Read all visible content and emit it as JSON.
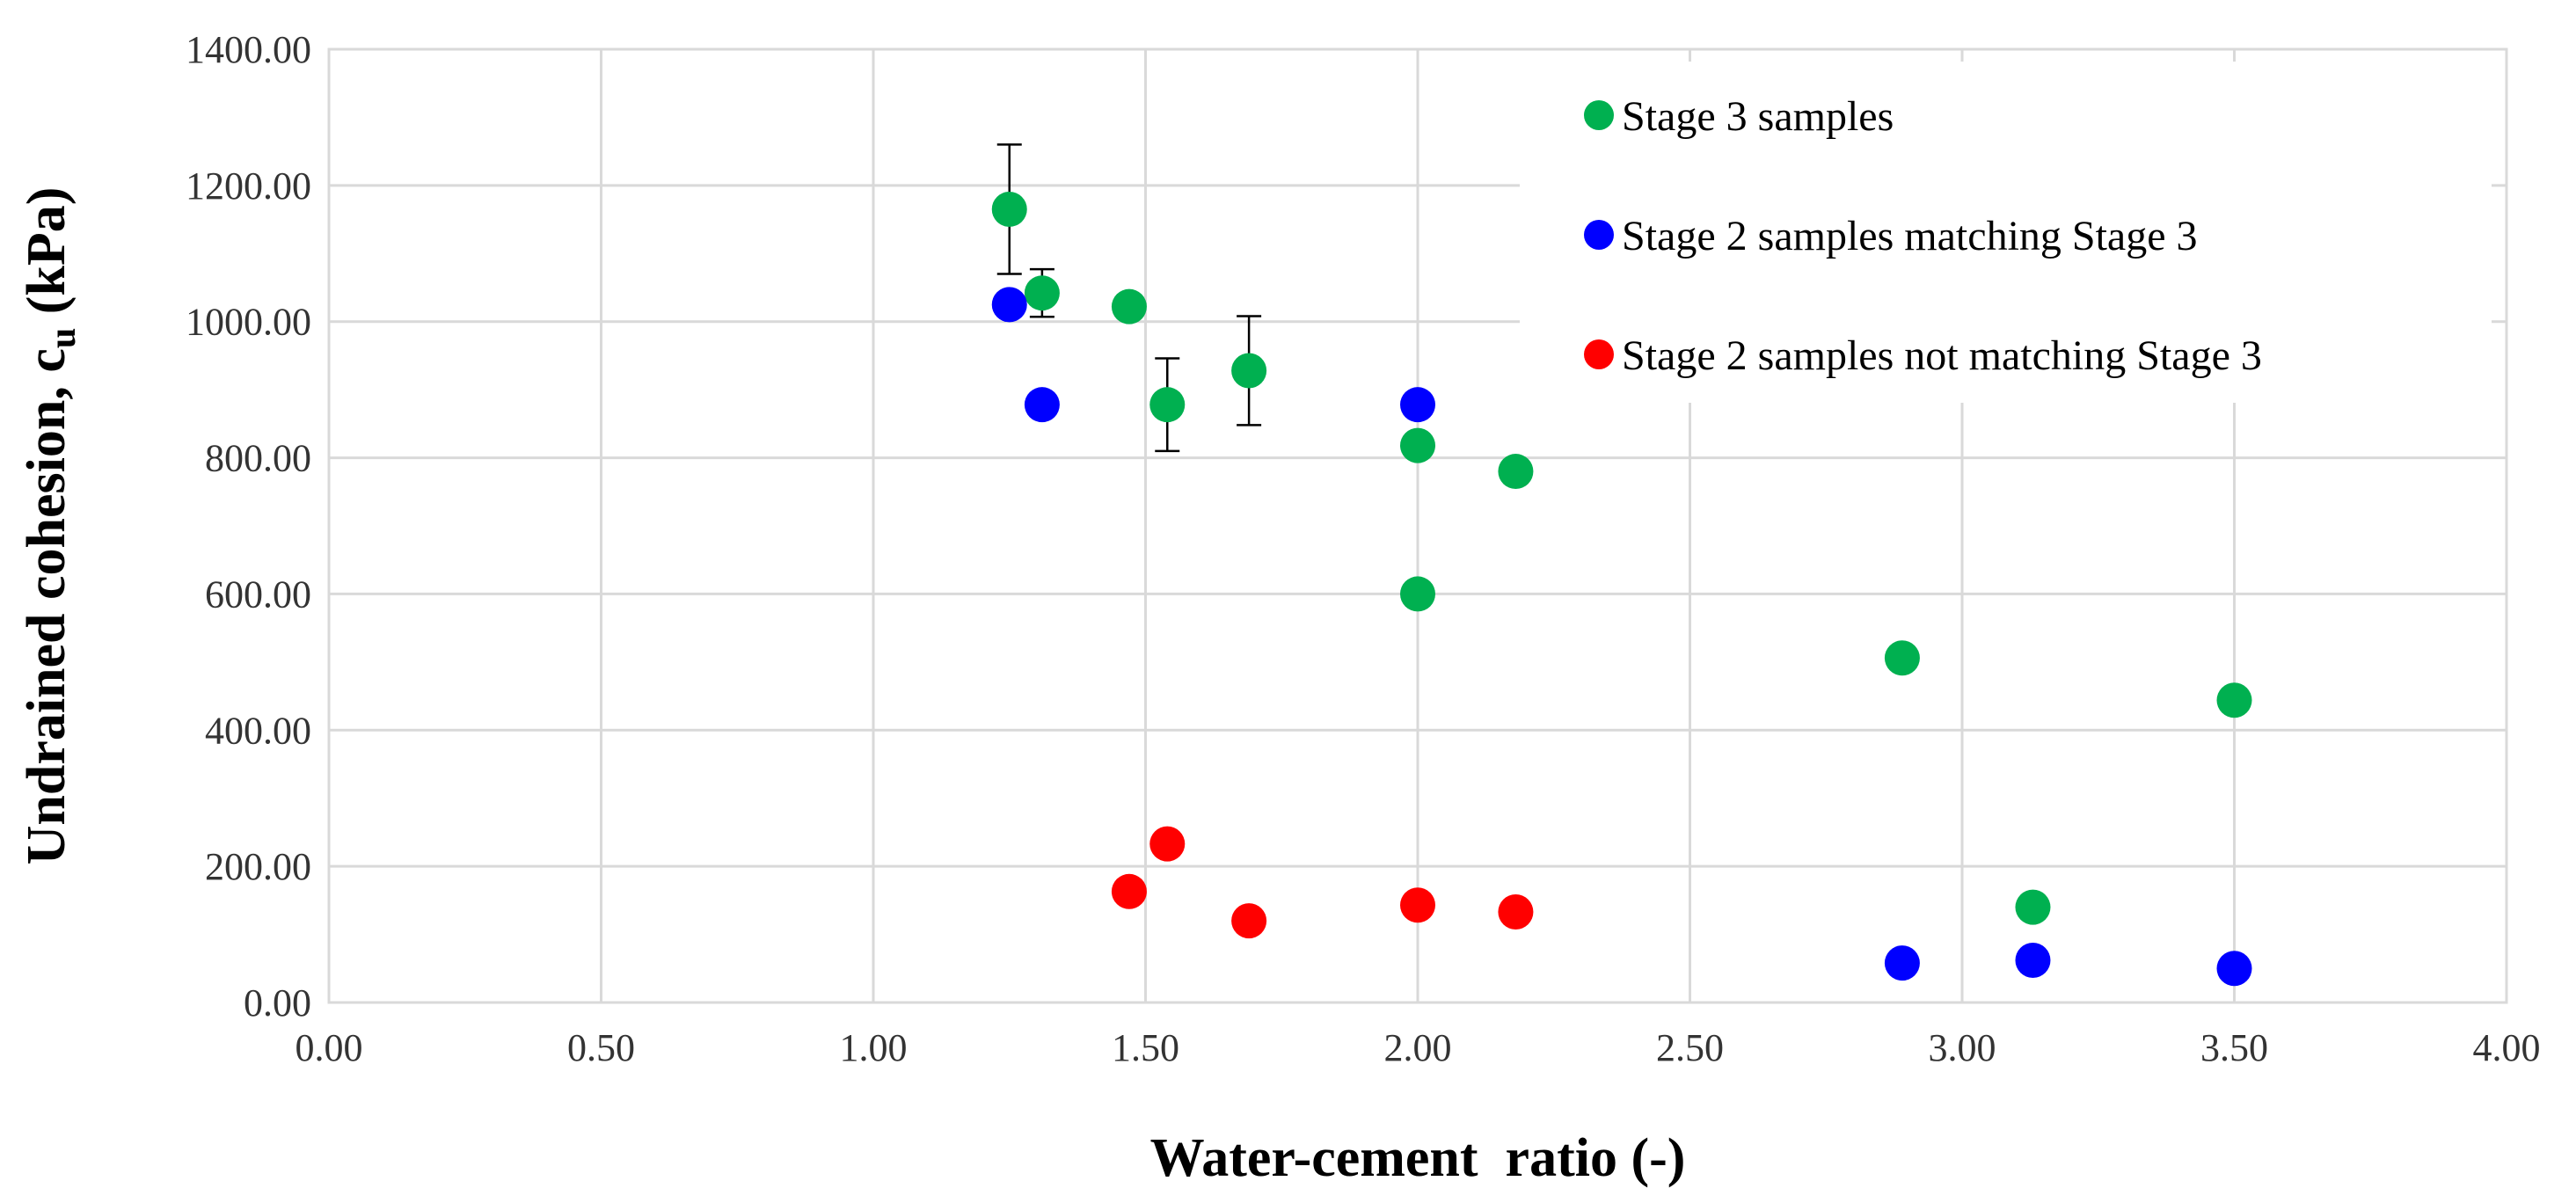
{
  "chart_data": {
    "type": "scatter",
    "title": "",
    "xlabel": "Water-cement  ratio (-)",
    "ylabel_main": "Undrained cohesion, c",
    "ylabel_sub": "u",
    "ylabel_unit": " (kPa)",
    "xlim": [
      0,
      4
    ],
    "ylim": [
      0,
      1400
    ],
    "x_ticks": [
      0,
      0.5,
      1.0,
      1.5,
      2.0,
      2.5,
      3.0,
      3.5,
      4.0
    ],
    "x_tick_labels": [
      "0.00",
      "0.50",
      "1.00",
      "1.50",
      "2.00",
      "2.50",
      "3.00",
      "3.50",
      "4.00"
    ],
    "y_ticks": [
      0,
      200,
      400,
      600,
      800,
      1000,
      1200,
      1400
    ],
    "y_tick_labels": [
      "0.00",
      "200.00",
      "400.00",
      "600.00",
      "800.00",
      "1000.00",
      "1200.00",
      "1400.00"
    ],
    "grid": true,
    "legend_position": "top-right",
    "series": [
      {
        "name": "Stage 3 samples",
        "color": "#00b050",
        "points": [
          {
            "x": 1.25,
            "y": 1165,
            "err": 95
          },
          {
            "x": 1.31,
            "y": 1042,
            "err": 35
          },
          {
            "x": 1.47,
            "y": 1022
          },
          {
            "x": 1.54,
            "y": 878,
            "err": 68
          },
          {
            "x": 1.69,
            "y": 928,
            "err": 80
          },
          {
            "x": 2.0,
            "y": 818
          },
          {
            "x": 2.18,
            "y": 780
          },
          {
            "x": 2.0,
            "y": 600
          },
          {
            "x": 2.89,
            "y": 506
          },
          {
            "x": 3.5,
            "y": 444
          },
          {
            "x": 3.13,
            "y": 140
          }
        ]
      },
      {
        "name": "Stage 2 samples matching Stage 3",
        "color": "#0000ff",
        "points": [
          {
            "x": 1.25,
            "y": 1025
          },
          {
            "x": 1.31,
            "y": 878
          },
          {
            "x": 2.0,
            "y": 878
          },
          {
            "x": 2.89,
            "y": 58
          },
          {
            "x": 3.13,
            "y": 62
          },
          {
            "x": 3.5,
            "y": 50
          }
        ]
      },
      {
        "name": "Stage 2 samples not matching Stage 3",
        "color": "#ff0000",
        "points": [
          {
            "x": 1.47,
            "y": 163
          },
          {
            "x": 1.54,
            "y": 233
          },
          {
            "x": 1.69,
            "y": 120
          },
          {
            "x": 2.0,
            "y": 143
          },
          {
            "x": 2.18,
            "y": 133
          }
        ]
      }
    ]
  }
}
